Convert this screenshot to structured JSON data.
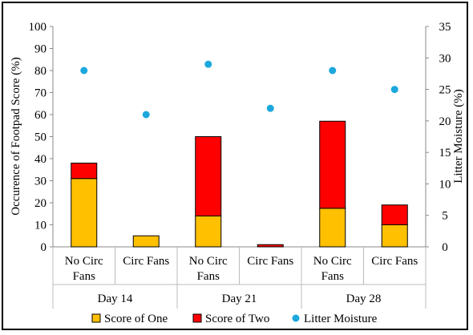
{
  "chart_data": {
    "type": "bar",
    "stacked": true,
    "title": "",
    "ylabel_left": "Occurence of Footpad Score (%)",
    "ylabel_right": "Litter Moisture (%)",
    "ylim_left": [
      0,
      100
    ],
    "yticks_left": [
      "0",
      "10",
      "20",
      "30",
      "40",
      "50",
      "60",
      "70",
      "80",
      "90",
      "100"
    ],
    "ylim_right": [
      0,
      35
    ],
    "yticks_right": [
      "0",
      "5",
      "10",
      "15",
      "20",
      "25",
      "30",
      "35"
    ],
    "grid": false,
    "legend_position": "bottom",
    "groups": [
      {
        "label": "Day 14",
        "categories": [
          "No Circ Fans",
          "Circ Fans"
        ]
      },
      {
        "label": "Day 21",
        "categories": [
          "No Circ Fans",
          "Circ Fans"
        ]
      },
      {
        "label": "Day 28",
        "categories": [
          "No Circ Fans",
          "Circ Fans"
        ]
      }
    ],
    "category_labels": [
      [
        "No Circ",
        "Fans"
      ],
      [
        "Circ Fans"
      ],
      [
        "No Circ",
        "Fans"
      ],
      [
        "Circ Fans"
      ],
      [
        "No Circ",
        "Fans"
      ],
      [
        "Circ Fans"
      ]
    ],
    "series": [
      {
        "name": "Score of One",
        "color": "#FFC000",
        "axis": "left",
        "kind": "bar",
        "values": [
          31,
          5,
          14,
          0,
          17.5,
          10
        ]
      },
      {
        "name": "Score of Two",
        "color": "#FF0000",
        "axis": "left",
        "kind": "bar",
        "values": [
          7,
          0,
          36,
          1,
          39.5,
          9
        ]
      },
      {
        "name": "Litter Moisture",
        "color": "#1CA8DD",
        "axis": "right",
        "kind": "scatter",
        "values": [
          28,
          21,
          29,
          22,
          28,
          25
        ]
      }
    ]
  }
}
